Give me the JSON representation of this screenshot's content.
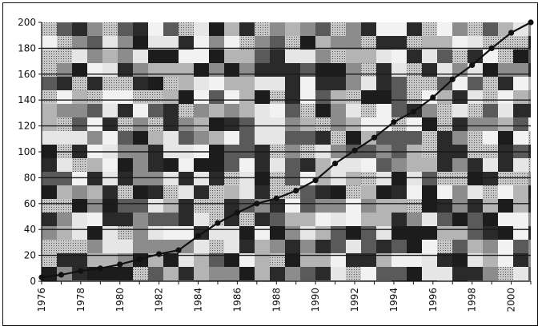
{
  "chart_data": {
    "type": "line",
    "title": "",
    "xlabel": "",
    "ylabel": "",
    "x": [
      1976,
      1977,
      1978,
      1979,
      1980,
      1981,
      1982,
      1983,
      1984,
      1985,
      1986,
      1987,
      1988,
      1989,
      1990,
      1991,
      1992,
      1993,
      1994,
      1995,
      1996,
      1997,
      1998,
      1999,
      2000,
      2001
    ],
    "series": [
      {
        "values": [
          3,
          5,
          8,
          10,
          13,
          17,
          21,
          24,
          35,
          45,
          53,
          60,
          64,
          70,
          78,
          91,
          101,
          111,
          123,
          131,
          142,
          156,
          167,
          180,
          192,
          200
        ]
      }
    ],
    "xlim": [
      1976,
      2001
    ],
    "ylim": [
      0,
      200
    ],
    "x_tick_labels": [
      "1976",
      "1978",
      "1980",
      "1982",
      "1984",
      "1986",
      "1988",
      "1990",
      "1992",
      "1994",
      "1996",
      "1998",
      "2000"
    ],
    "y_tick_labels": [
      "0",
      "20",
      "40",
      "60",
      "80",
      "100",
      "120",
      "140",
      "160",
      "180",
      "200"
    ],
    "grid": "horizontal",
    "legend": "none",
    "colors": {
      "line": "#111111",
      "marker": "#111111",
      "gridline": "#1a1a1a",
      "plot_texture_dark": "#2a2a2a",
      "plot_texture_mid": "#8c8c8c",
      "plot_texture_light": "#e6e6e6"
    }
  }
}
